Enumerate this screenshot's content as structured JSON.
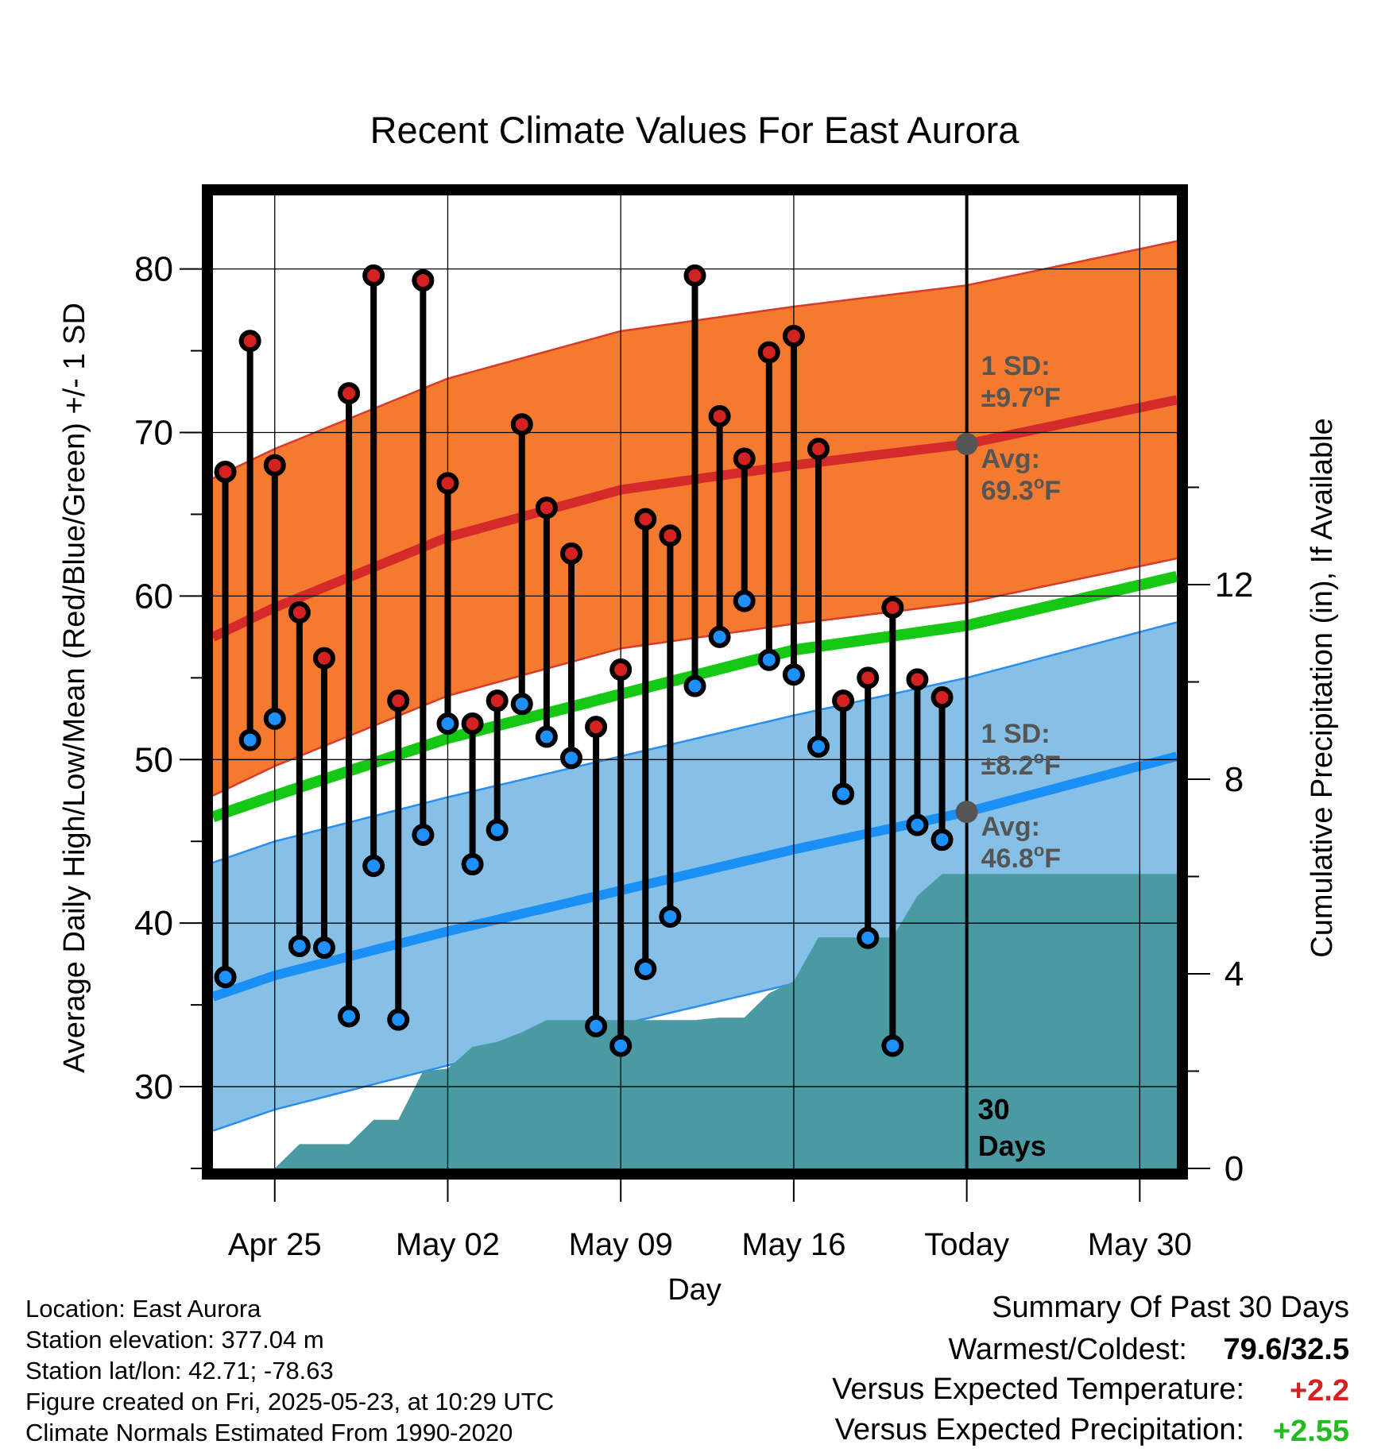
{
  "chart_data": {
    "type": "line",
    "title": "Recent Climate Values For East Aurora",
    "xlabel": "Day",
    "ylabel": "Average Daily High/Low/Mean (Red/Blue/Green) +/- 1 SD",
    "y2label": "Cumulative Precipitation (in), If Available",
    "ylim": [
      25,
      84.5
    ],
    "y2lim": [
      0,
      20
    ],
    "xlim": [
      -2.5,
      36.5
    ],
    "x_tick_labels": [
      "Apr 25",
      "May 02",
      "May 09",
      "May 16",
      "Today",
      "May 30"
    ],
    "x_tick_days": [
      0,
      7,
      14,
      21,
      28,
      35
    ],
    "y_ticks": [
      30,
      40,
      50,
      60,
      70,
      80
    ],
    "y2_ticks": [
      0,
      4,
      8,
      12
    ],
    "today_day": 28,
    "window_label": [
      "30",
      "Days"
    ],
    "colors": {
      "high_band": "#f47a2f",
      "high_edge": "#d93a2a",
      "high_avg": "#d42a2a",
      "low_band": "#86c0e6",
      "low_edge": "#2a8ef0",
      "low_avg": "#1a8ff5",
      "mean_line": "#14c814",
      "precip": "#4a9aa4",
      "high_marker": "#d42222",
      "low_marker": "#1e90ff",
      "annotation": "#555555"
    },
    "normals": {
      "days": [
        -2.5,
        0,
        7,
        14,
        21,
        28,
        36.5
      ],
      "high_avg": [
        57.5,
        59.3,
        63.6,
        66.5,
        68.0,
        69.3,
        72.0
      ],
      "high_sd": 9.7,
      "low_avg": [
        35.5,
        36.8,
        39.5,
        42.0,
        44.5,
        46.8,
        50.2
      ],
      "low_sd": 8.2,
      "mean": [
        46.5,
        47.8,
        51.3,
        54.0,
        56.7,
        58.2,
        61.2
      ]
    },
    "series": [
      {
        "name": "High",
        "x": [
          -2,
          -1,
          0,
          1,
          2,
          3,
          4,
          5,
          6,
          7,
          8,
          9,
          10,
          11,
          12,
          13,
          14,
          15,
          16,
          17,
          18,
          19,
          20,
          21,
          22,
          23,
          24,
          25,
          26,
          27
        ],
        "values": [
          67.6,
          75.6,
          68.0,
          59.0,
          56.2,
          72.4,
          79.6,
          53.6,
          79.3,
          66.9,
          52.2,
          53.6,
          70.5,
          65.4,
          62.6,
          52.0,
          55.5,
          64.7,
          63.7,
          79.6,
          71.0,
          68.4,
          74.9,
          75.9,
          69.0,
          53.6,
          55.0,
          59.3,
          54.9,
          53.8
        ]
      },
      {
        "name": "Low",
        "x": [
          -2,
          -1,
          0,
          1,
          2,
          3,
          4,
          5,
          6,
          7,
          8,
          9,
          10,
          11,
          12,
          13,
          14,
          15,
          16,
          17,
          18,
          19,
          20,
          21,
          22,
          23,
          24,
          25,
          26,
          27
        ],
        "values": [
          36.7,
          51.2,
          52.5,
          38.6,
          38.5,
          34.3,
          43.5,
          34.1,
          45.4,
          52.2,
          43.6,
          45.7,
          53.4,
          51.4,
          50.1,
          33.7,
          32.5,
          37.2,
          40.4,
          54.5,
          57.5,
          59.7,
          56.1,
          55.2,
          50.8,
          47.9,
          39.1,
          32.5,
          46.0,
          45.1
        ]
      },
      {
        "name": "Cumulative Precipitation",
        "x": [
          0,
          1,
          2,
          3,
          4,
          5,
          6,
          7,
          8,
          9,
          10,
          11,
          12,
          13,
          14,
          15,
          16,
          17,
          18,
          19,
          20,
          21,
          22,
          23,
          24,
          25,
          26,
          27,
          28,
          36.5
        ],
        "values": [
          0,
          0.5,
          0.5,
          0.5,
          1.0,
          1.0,
          2.0,
          2.05,
          2.5,
          2.6,
          2.8,
          3.05,
          3.05,
          3.05,
          3.05,
          3.05,
          3.05,
          3.05,
          3.1,
          3.1,
          3.6,
          3.85,
          4.75,
          4.75,
          4.75,
          4.75,
          5.6,
          6.05,
          6.05,
          6.05
        ]
      }
    ]
  },
  "annotations": {
    "high_sd_label": "1 SD:",
    "high_sd_value": "±9.7",
    "high_avg_label": "Avg:",
    "high_avg_value": "69.3",
    "low_sd_label": "1 SD:",
    "low_sd_value": "±8.2",
    "low_avg_label": "Avg:",
    "low_avg_value": "46.8",
    "degree_mark": "o",
    "unit_f": "F"
  },
  "station_info": [
    "Location: East Aurora",
    "Station elevation: 377.04 m",
    "Station lat/lon: 42.71; -78.63",
    "Figure created on Fri, 2025-05-23, at 10:29 UTC",
    "Climate Normals Estimated From 1990-2020"
  ],
  "summary": {
    "heading": "Summary Of Past 30 Days",
    "warm_cold_label": "Warmest/Coldest:",
    "warm_cold_value": "79.6/32.5",
    "temp_label": "Versus Expected Temperature:",
    "temp_value": "+2.2",
    "temp_color": "#d42222",
    "precip_label": "Versus Expected Precipitation:",
    "precip_value": "+2.55",
    "precip_color": "#22bb22"
  }
}
